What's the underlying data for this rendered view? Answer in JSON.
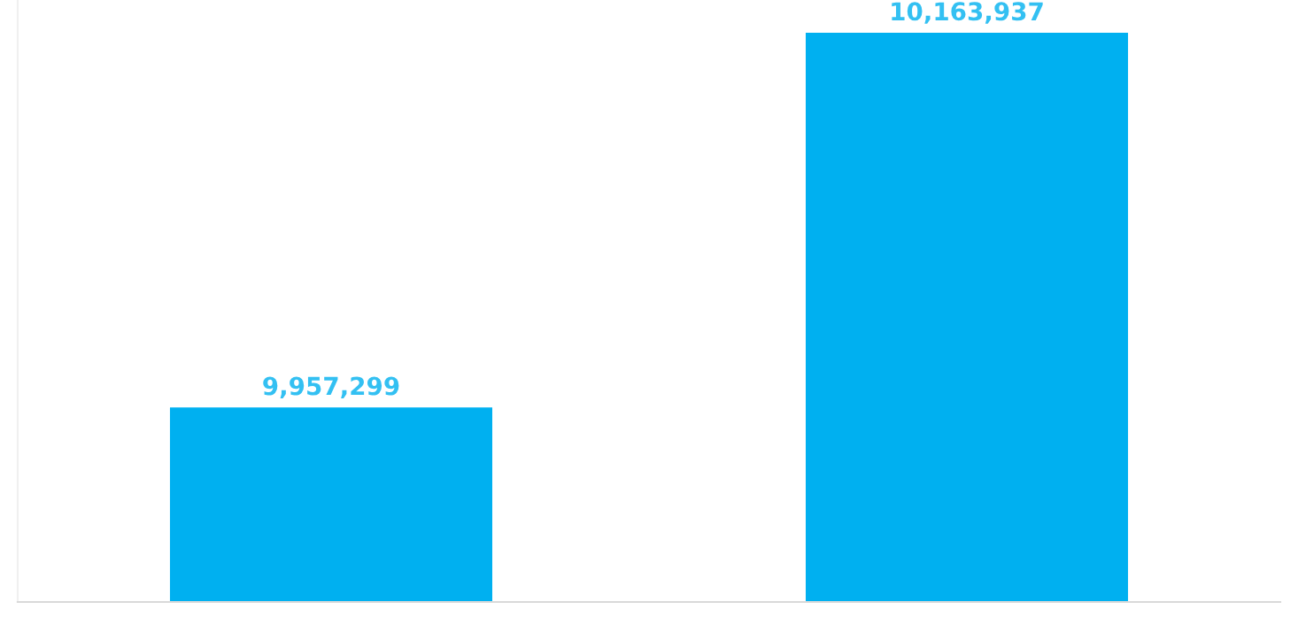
{
  "chart_data": {
    "type": "bar",
    "categories": [
      null,
      null
    ],
    "values": [
      9957299,
      10163937
    ],
    "value_labels": [
      "9,957,299",
      "10,163,937"
    ],
    "color": "#00b0f0",
    "ylim": [
      9850000,
      10182000
    ],
    "grid": false,
    "legend": false,
    "tick_labels": false
  }
}
